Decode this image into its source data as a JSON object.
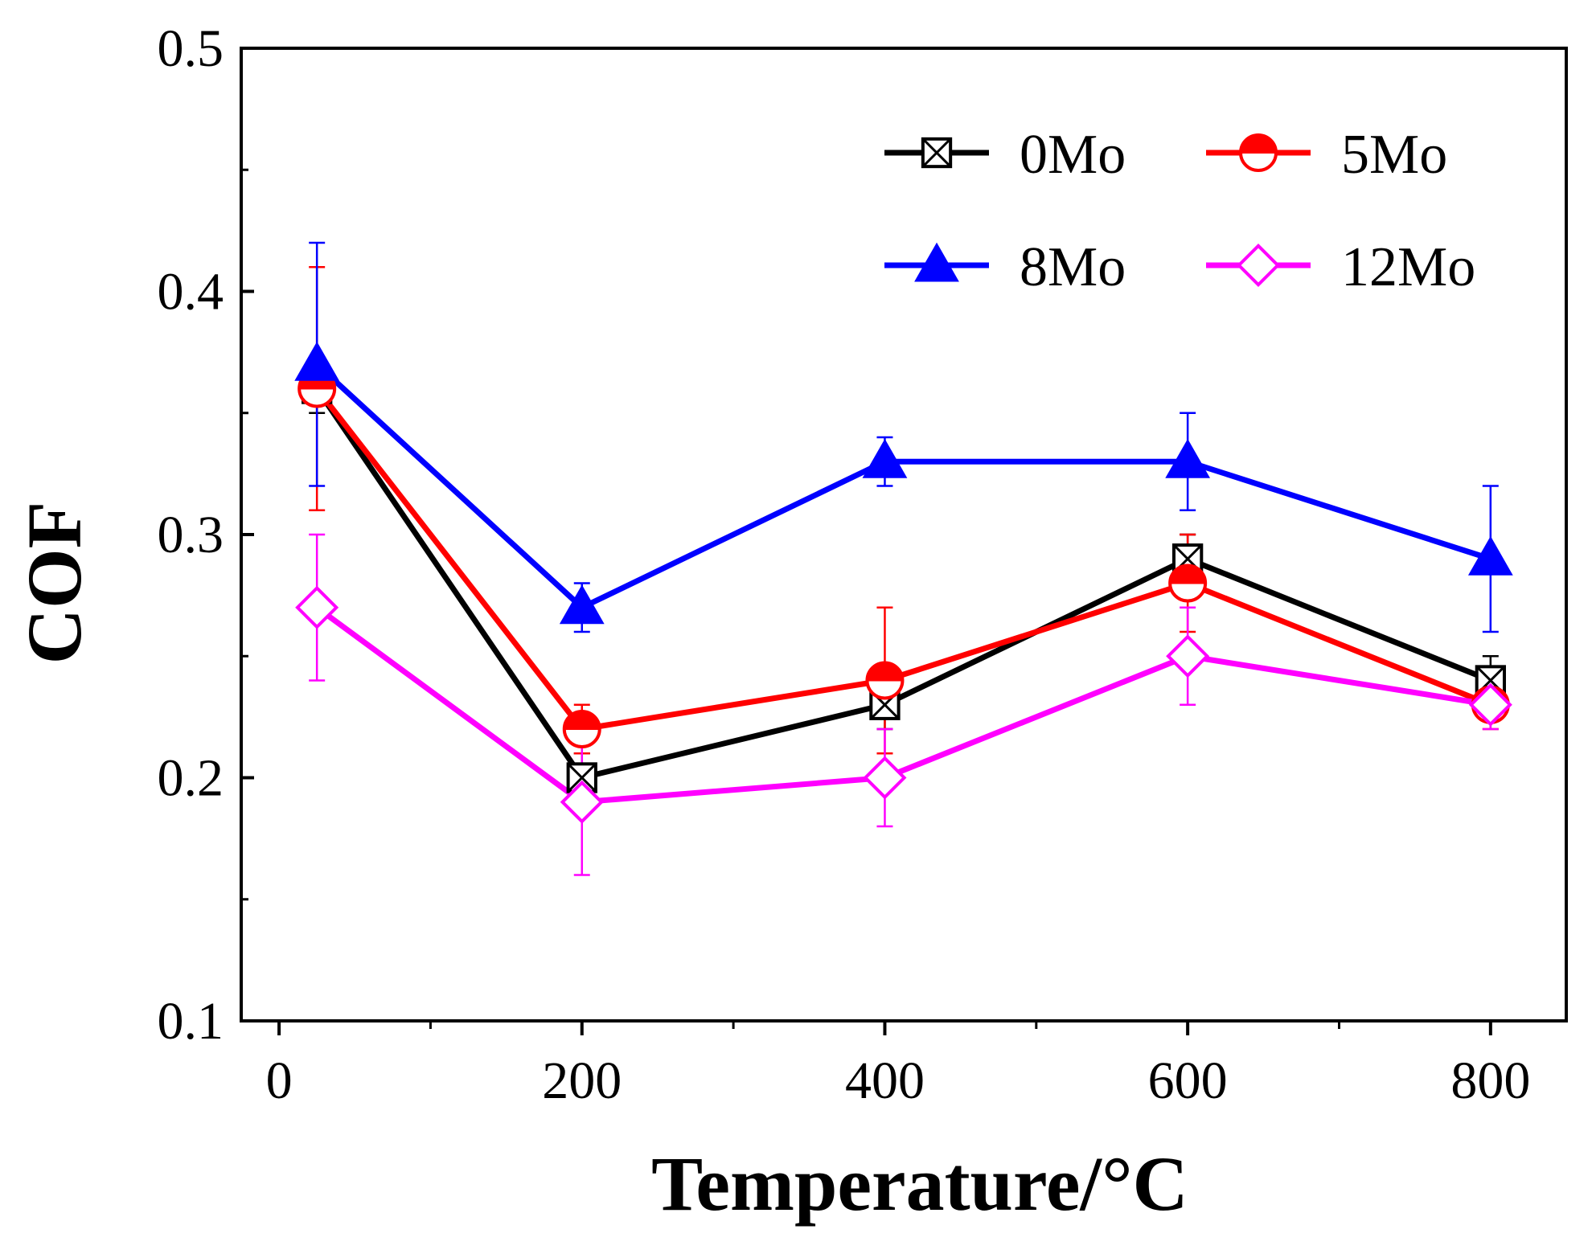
{
  "chart_data": {
    "type": "line",
    "title": "",
    "xlabel": "Temperature/°C",
    "ylabel": "COF",
    "xlim": [
      -25,
      850
    ],
    "ylim": [
      0.1,
      0.5
    ],
    "xticks": [
      0,
      200,
      400,
      600,
      800
    ],
    "xtick_labels": [
      "0",
      "200",
      "400",
      "600",
      "800"
    ],
    "xminor": [
      100,
      300,
      500,
      700
    ],
    "yticks": [
      0.1,
      0.2,
      0.3,
      0.4,
      0.5
    ],
    "ytick_labels": [
      "0.1",
      "0.2",
      "0.3",
      "0.4",
      "0.5"
    ],
    "yminor": [
      0.15,
      0.25,
      0.35,
      0.45
    ],
    "grid": false,
    "legend_position": "top-right",
    "series": [
      {
        "name": "0Mo",
        "color": "#000000",
        "marker": "square-x",
        "x": [
          25,
          200,
          400,
          600,
          800
        ],
        "y": [
          0.36,
          0.2,
          0.23,
          0.29,
          0.24
        ],
        "err": [
          0.01,
          0.01,
          0.01,
          0.01,
          0.01
        ]
      },
      {
        "name": "5Mo",
        "color": "#ff0000",
        "marker": "half-circle",
        "x": [
          25,
          200,
          400,
          600,
          800
        ],
        "y": [
          0.36,
          0.22,
          0.24,
          0.28,
          0.23
        ],
        "err": [
          0.05,
          0.01,
          0.03,
          0.02,
          0.01
        ]
      },
      {
        "name": "8Mo",
        "color": "#0000ff",
        "marker": "triangle",
        "x": [
          25,
          200,
          400,
          600,
          800
        ],
        "y": [
          0.37,
          0.27,
          0.33,
          0.33,
          0.29
        ],
        "err": [
          0.05,
          0.01,
          0.01,
          0.02,
          0.03
        ]
      },
      {
        "name": "12Mo",
        "color": "#ff00ff",
        "marker": "diamond",
        "x": [
          25,
          200,
          400,
          600,
          800
        ],
        "y": [
          0.27,
          0.19,
          0.2,
          0.25,
          0.23
        ],
        "err": [
          0.03,
          0.03,
          0.02,
          0.02,
          0.01
        ]
      }
    ]
  }
}
